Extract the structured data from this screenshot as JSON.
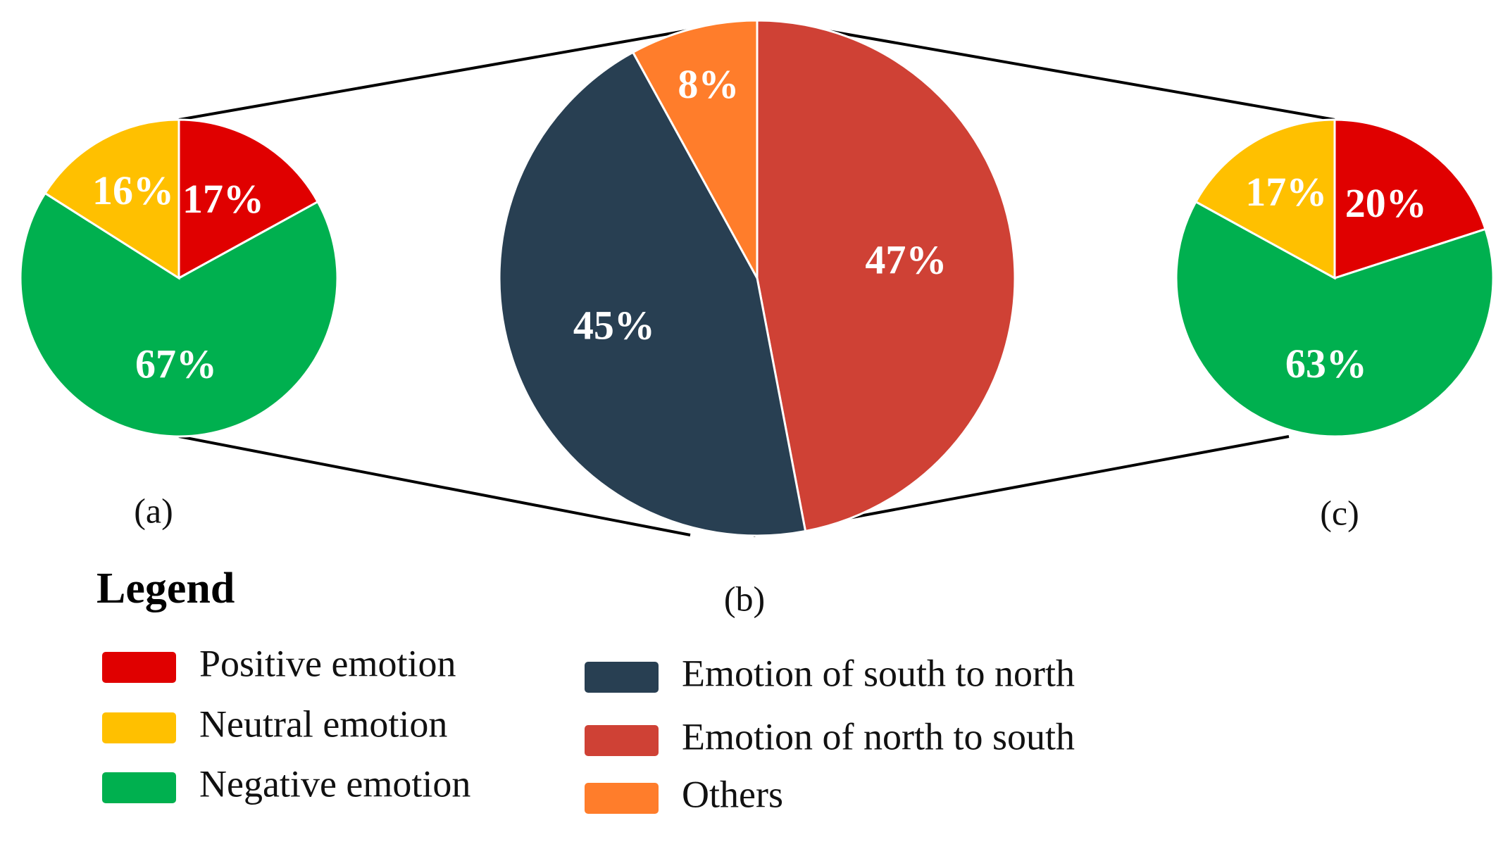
{
  "chart_data": [
    {
      "type": "pie",
      "panel": "(a)",
      "slices": [
        {
          "label": "Positive emotion",
          "value": 17,
          "display": "17%",
          "color": "#E00000"
        },
        {
          "label": "Negative emotion",
          "value": 67,
          "display": "67%",
          "color": "#00B04F"
        },
        {
          "label": "Neutral emotion",
          "value": 16,
          "display": "16%",
          "color": "#FFC000"
        }
      ]
    },
    {
      "type": "pie",
      "panel": "(b)",
      "slices": [
        {
          "label": "Emotion of north to south",
          "value": 47,
          "display": "47%",
          "color": "#CF4135"
        },
        {
          "label": "Emotion of south to north",
          "value": 45,
          "display": "45%",
          "color": "#283F52"
        },
        {
          "label": "Others",
          "value": 8,
          "display": "8%",
          "color": "#FF7D2B"
        }
      ]
    },
    {
      "type": "pie",
      "panel": "(c)",
      "slices": [
        {
          "label": "Positive emotion",
          "value": 20,
          "display": "20%",
          "color": "#E00000"
        },
        {
          "label": "Negative emotion",
          "value": 63,
          "display": "63%",
          "color": "#00B04F"
        },
        {
          "label": "Neutral emotion",
          "value": 17,
          "display": "17%",
          "color": "#FFC000"
        }
      ]
    }
  ],
  "legend": {
    "title": "Legend",
    "items": [
      {
        "label": "Positive emotion",
        "color": "#E00000"
      },
      {
        "label": "Neutral emotion",
        "color": "#FFC000"
      },
      {
        "label": "Negative emotion",
        "color": "#00B04F"
      },
      {
        "label": "Emotion of south to north",
        "color": "#283F52"
      },
      {
        "label": "Emotion of north to south",
        "color": "#CF4135"
      },
      {
        "label": "Others",
        "color": "#FF7D2B"
      }
    ]
  },
  "connector_color": "#000000"
}
